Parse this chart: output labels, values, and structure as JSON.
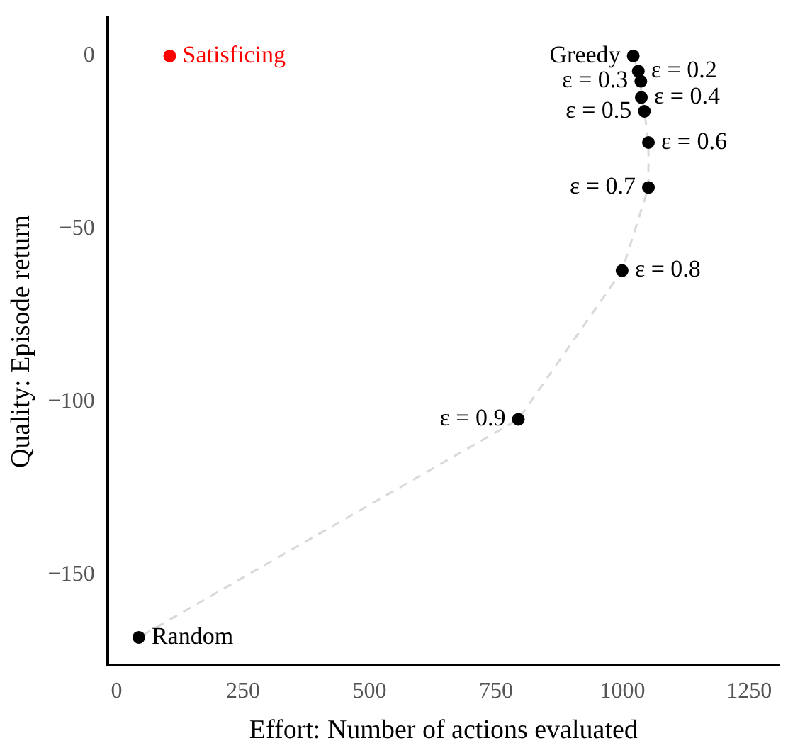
{
  "chart_data": {
    "type": "scatter",
    "xlabel": "Effort: Number of actions evaluated",
    "ylabel": "Quality: Episode return",
    "xlim": [
      -18,
      1310
    ],
    "ylim": [
      -176,
      11
    ],
    "xticks": [
      0,
      250,
      500,
      750,
      1000,
      1250
    ],
    "yticks": [
      -150,
      -100,
      -50,
      0
    ],
    "grid": false,
    "legend": false,
    "series": [
      {
        "type": "line",
        "color": "#d9d9d9",
        "line_style": "dashed",
        "marker": "none",
        "x": [
          1021,
          1031,
          1036,
          1037,
          1043,
          1051,
          1051,
          999,
          794,
          44
        ],
        "values": [
          0,
          -4.4,
          -7.3,
          -12,
          -16,
          -25,
          -38,
          -62,
          -105,
          -168
        ]
      },
      {
        "color": "#000000",
        "marker": "circle",
        "x": [
          1021,
          1031,
          1036,
          1037,
          1043,
          1051,
          1051,
          999,
          794,
          44
        ],
        "values": [
          0,
          -4.4,
          -7.3,
          -12,
          -16,
          -25,
          -38,
          -62,
          -105,
          -168
        ]
      },
      {
        "name": "Satisficing",
        "color": "#ff0000",
        "marker": "circle",
        "x": [
          105
        ],
        "values": [
          0
        ]
      }
    ],
    "annotations": [
      {
        "text": "Greedy",
        "x": 1021,
        "y": 0
      },
      {
        "text": "ε = 0.2",
        "x": 1031,
        "y": -4.4
      },
      {
        "text": "ε = 0.3",
        "x": 1036,
        "y": -7.3
      },
      {
        "text": "ε = 0.4",
        "x": 1037,
        "y": -12
      },
      {
        "text": "ε = 0.5",
        "x": 1043,
        "y": -16
      },
      {
        "text": "ε = 0.6",
        "x": 1051,
        "y": -25
      },
      {
        "text": "ε = 0.7",
        "x": 1051,
        "y": -38
      },
      {
        "text": "ε = 0.8",
        "x": 999,
        "y": -62
      },
      {
        "text": "ε = 0.9",
        "x": 794,
        "y": -105
      },
      {
        "text": "Random",
        "x": 44,
        "y": -168
      }
    ]
  }
}
